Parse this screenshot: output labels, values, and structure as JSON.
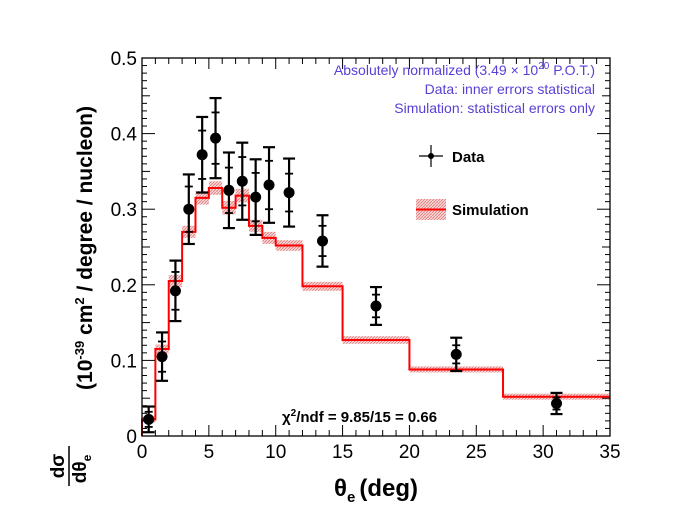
{
  "chart_data": {
    "type": "line",
    "xlabel_main": "θ",
    "xlabel_sub": "e",
    "xlabel_unit": "(deg)",
    "ylabel_frac_num": "dσ",
    "ylabel_frac_den_main": "dθ",
    "ylabel_frac_den_sub": "e",
    "ylabel_units_pre": "(10",
    "ylabel_units_exp": "-39",
    "ylabel_units_mid": " cm",
    "ylabel_units_exp2": "2",
    "ylabel_units_post": " / degree / nucleon)",
    "xlim": [
      0,
      35
    ],
    "ylim": [
      0,
      0.5
    ],
    "x_ticks": [
      "0",
      "5",
      "10",
      "15",
      "20",
      "25",
      "30",
      "35"
    ],
    "y_ticks": [
      "0",
      "0.1",
      "0.2",
      "0.3",
      "0.4",
      "0.5"
    ],
    "legend": {
      "data": "Data",
      "simulation": "Simulation"
    },
    "annotations": {
      "line1_pre": "Absolutely normalized (3.49 × 10",
      "line1_exp": "20",
      "line1_post": " P.O.T.)",
      "line2": "Data: inner errors statistical",
      "line3": "Simulation: statistical errors only",
      "chi2_pre": "χ",
      "chi2_exp": "2",
      "chi2_post": "/ndf = 9.85/15 = 0.66"
    },
    "series": [
      {
        "name": "Data",
        "style": "points-with-errors",
        "points": [
          {
            "x": 0.5,
            "y": 0.022,
            "stat": 0.01,
            "tot": 0.017
          },
          {
            "x": 1.5,
            "y": 0.105,
            "stat": 0.02,
            "tot": 0.032
          },
          {
            "x": 2.5,
            "y": 0.192,
            "stat": 0.025,
            "tot": 0.04
          },
          {
            "x": 3.5,
            "y": 0.3,
            "stat": 0.03,
            "tot": 0.046
          },
          {
            "x": 4.5,
            "y": 0.372,
            "stat": 0.032,
            "tot": 0.05
          },
          {
            "x": 5.5,
            "y": 0.394,
            "stat": 0.034,
            "tot": 0.053
          },
          {
            "x": 6.5,
            "y": 0.325,
            "stat": 0.03,
            "tot": 0.05
          },
          {
            "x": 7.5,
            "y": 0.337,
            "stat": 0.032,
            "tot": 0.051
          },
          {
            "x": 8.5,
            "y": 0.316,
            "stat": 0.032,
            "tot": 0.05
          },
          {
            "x": 9.5,
            "y": 0.332,
            "stat": 0.032,
            "tot": 0.05
          },
          {
            "x": 11.0,
            "y": 0.322,
            "stat": 0.025,
            "tot": 0.045
          },
          {
            "x": 13.5,
            "y": 0.258,
            "stat": 0.02,
            "tot": 0.034
          },
          {
            "x": 17.5,
            "y": 0.172,
            "stat": 0.015,
            "tot": 0.025
          },
          {
            "x": 23.5,
            "y": 0.108,
            "stat": 0.012,
            "tot": 0.022
          },
          {
            "x": 31.0,
            "y": 0.043,
            "stat": 0.008,
            "tot": 0.014
          }
        ]
      },
      {
        "name": "Simulation",
        "style": "histogram-with-band",
        "color": "#ff0000",
        "band_color": "#e88a8a",
        "bins": [
          {
            "lo": 0,
            "hi": 1,
            "y": 0.022,
            "err": 0.004
          },
          {
            "lo": 1,
            "hi": 2,
            "y": 0.115,
            "err": 0.006
          },
          {
            "lo": 2,
            "hi": 3,
            "y": 0.205,
            "err": 0.008
          },
          {
            "lo": 3,
            "hi": 4,
            "y": 0.27,
            "err": 0.008
          },
          {
            "lo": 4,
            "hi": 5,
            "y": 0.315,
            "err": 0.009
          },
          {
            "lo": 5,
            "hi": 6,
            "y": 0.328,
            "err": 0.009
          },
          {
            "lo": 6,
            "hi": 7,
            "y": 0.302,
            "err": 0.009
          },
          {
            "lo": 7,
            "hi": 8,
            "y": 0.318,
            "err": 0.009
          },
          {
            "lo": 8,
            "hi": 9,
            "y": 0.278,
            "err": 0.008
          },
          {
            "lo": 9,
            "hi": 10,
            "y": 0.262,
            "err": 0.008
          },
          {
            "lo": 10,
            "hi": 12,
            "y": 0.252,
            "err": 0.007
          },
          {
            "lo": 12,
            "hi": 15,
            "y": 0.198,
            "err": 0.006
          },
          {
            "lo": 15,
            "hi": 20,
            "y": 0.127,
            "err": 0.005
          },
          {
            "lo": 20,
            "hi": 27,
            "y": 0.088,
            "err": 0.004
          },
          {
            "lo": 27,
            "hi": 35,
            "y": 0.052,
            "err": 0.004
          }
        ]
      }
    ]
  }
}
